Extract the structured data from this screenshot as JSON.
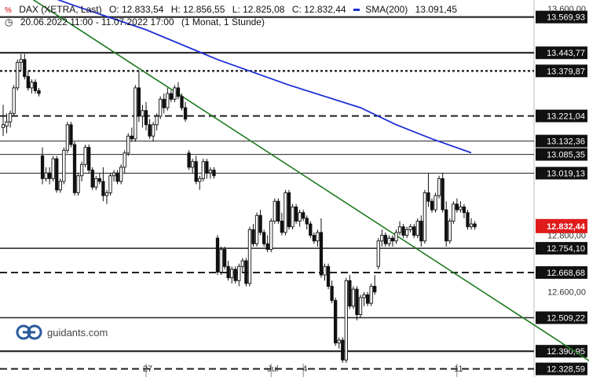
{
  "header": {
    "instrument": "DAX (XETRA, Last)",
    "open": "O: 12.833,54",
    "high": "H: 12.856,55",
    "low": "L: 12.825,08",
    "close": "C: 12.832,44",
    "sma_label": "SMA(200)",
    "sma_value": "13.091,45",
    "range": "20.06.2022 11:00 - 11.07.2022 17:00",
    "interval": "(1 Monat, 1 Stunde)"
  },
  "logo": {
    "text": "guidants.com"
  },
  "colors": {
    "candle_fill": "#111111",
    "candle_hollow": "#ffffff",
    "sma": "#1e2fd6",
    "trendline": "#1f7a1f",
    "current_price_bg": "#e01b1b",
    "grid_line": "#dddddd"
  },
  "chart_data": {
    "type": "candlestick",
    "title": "DAX (XETRA, Last)",
    "ylim": [
      12300,
      13630
    ],
    "y_axis_ticks": [
      "13.600,00",
      "12.800,00",
      "12.600,00"
    ],
    "x_ticks": [
      "27",
      "Jul",
      "4",
      "11"
    ],
    "current_price": "12.832,44",
    "levels": [
      {
        "label": "13.569,93",
        "style": "solid-thick"
      },
      {
        "label": "13.443,77",
        "style": "solid-thick"
      },
      {
        "label": "13.379,87",
        "style": "dotted"
      },
      {
        "label": "13.221,04",
        "style": "dashed"
      },
      {
        "label": "13.132,36",
        "style": "solid-thin"
      },
      {
        "label": "13.085,35",
        "style": "solid-thin"
      },
      {
        "label": "13.019,13",
        "style": "solid-thin"
      },
      {
        "label": "12.754,10",
        "style": "solid"
      },
      {
        "label": "12.668,68",
        "style": "dashed"
      },
      {
        "label": "12.509,22",
        "style": "solid"
      },
      {
        "label": "12.390,95",
        "style": "solid-thick"
      },
      {
        "label": "12.328,59",
        "style": "dashed"
      }
    ],
    "sma_series": {
      "name": "SMA(200)",
      "points": [
        [
          0,
          13700
        ],
        [
          20,
          13610
        ],
        [
          40,
          13525
        ],
        [
          60,
          13420
        ],
        [
          80,
          13330
        ],
        [
          100,
          13250
        ],
        [
          110,
          13190
        ],
        [
          120,
          13140
        ],
        [
          131,
          13091
        ]
      ]
    },
    "trendline": {
      "from": [
        0,
        13700
      ],
      "to": [
        171,
        12300
      ]
    },
    "candles": [
      {
        "o": 13180,
        "h": 13260,
        "l": 13150,
        "c": 13190
      },
      {
        "o": 13185,
        "h": 13230,
        "l": 13160,
        "c": 13200
      },
      {
        "o": 13200,
        "h": 13240,
        "l": 13180,
        "c": 13230
      },
      {
        "o": 13230,
        "h": 13330,
        "l": 13220,
        "c": 13320
      },
      {
        "o": 13320,
        "h": 13420,
        "l": 13310,
        "c": 13410
      },
      {
        "o": 13410,
        "h": 13440,
        "l": 13380,
        "c": 13420
      },
      {
        "o": 13420,
        "h": 13440,
        "l": 13350,
        "c": 13360
      },
      {
        "o": 13360,
        "h": 13380,
        "l": 13310,
        "c": 13320
      },
      {
        "o": 13320,
        "h": 13350,
        "l": 13300,
        "c": 13340
      },
      {
        "o": 13340,
        "h": 13350,
        "l": 13300,
        "c": 13310
      },
      {
        "o": 13310,
        "h": 13320,
        "l": 13290,
        "c": 13300
      },
      {
        "o": 13080,
        "h": 13110,
        "l": 12980,
        "c": 13000
      },
      {
        "o": 13000,
        "h": 13040,
        "l": 12990,
        "c": 13020
      },
      {
        "o": 13020,
        "h": 13040,
        "l": 12980,
        "c": 13000
      },
      {
        "o": 13000,
        "h": 13080,
        "l": 12990,
        "c": 13070
      },
      {
        "o": 13070,
        "h": 13080,
        "l": 12950,
        "c": 12960
      },
      {
        "o": 12960,
        "h": 13000,
        "l": 12950,
        "c": 12990
      },
      {
        "o": 12990,
        "h": 13110,
        "l": 12980,
        "c": 13100
      },
      {
        "o": 13100,
        "h": 13200,
        "l": 13090,
        "c": 13190
      },
      {
        "o": 13190,
        "h": 13200,
        "l": 13110,
        "c": 13120
      },
      {
        "o": 13120,
        "h": 13130,
        "l": 12940,
        "c": 12950
      },
      {
        "o": 12950,
        "h": 13020,
        "l": 12940,
        "c": 13010
      },
      {
        "o": 13010,
        "h": 13060,
        "l": 12990,
        "c": 13050
      },
      {
        "o": 13050,
        "h": 13120,
        "l": 13040,
        "c": 13110
      },
      {
        "o": 13110,
        "h": 13120,
        "l": 13020,
        "c": 13030
      },
      {
        "o": 13030,
        "h": 13040,
        "l": 12960,
        "c": 12970
      },
      {
        "o": 12970,
        "h": 13010,
        "l": 12960,
        "c": 13000
      },
      {
        "o": 13000,
        "h": 13020,
        "l": 12980,
        "c": 12990
      },
      {
        "o": 12990,
        "h": 13040,
        "l": 12920,
        "c": 12940
      },
      {
        "o": 12940,
        "h": 12960,
        "l": 12910,
        "c": 12950
      },
      {
        "o": 12950,
        "h": 13020,
        "l": 12940,
        "c": 13010
      },
      {
        "o": 13010,
        "h": 13030,
        "l": 12990,
        "c": 13020
      },
      {
        "o": 13020,
        "h": 13030,
        "l": 12980,
        "c": 12990
      },
      {
        "o": 12990,
        "h": 13050,
        "l": 12980,
        "c": 13040
      },
      {
        "o": 13040,
        "h": 13100,
        "l": 13020,
        "c": 13090
      },
      {
        "o": 13090,
        "h": 13160,
        "l": 13080,
        "c": 13150
      },
      {
        "o": 13150,
        "h": 13180,
        "l": 13130,
        "c": 13140
      },
      {
        "o": 13140,
        "h": 13330,
        "l": 13130,
        "c": 13320
      },
      {
        "o": 13320,
        "h": 13380,
        "l": 13200,
        "c": 13220
      },
      {
        "o": 13220,
        "h": 13260,
        "l": 13180,
        "c": 13240
      },
      {
        "o": 13240,
        "h": 13270,
        "l": 13170,
        "c": 13190
      },
      {
        "o": 13190,
        "h": 13210,
        "l": 13140,
        "c": 13150
      },
      {
        "o": 13150,
        "h": 13200,
        "l": 13130,
        "c": 13190
      },
      {
        "o": 13190,
        "h": 13230,
        "l": 13170,
        "c": 13220
      },
      {
        "o": 13220,
        "h": 13290,
        "l": 13210,
        "c": 13280
      },
      {
        "o": 13280,
        "h": 13300,
        "l": 13230,
        "c": 13250
      },
      {
        "o": 13250,
        "h": 13320,
        "l": 13240,
        "c": 13300
      },
      {
        "o": 13300,
        "h": 13310,
        "l": 13270,
        "c": 13280
      },
      {
        "o": 13280,
        "h": 13330,
        "l": 13270,
        "c": 13320
      },
      {
        "o": 13320,
        "h": 13340,
        "l": 13280,
        "c": 13290
      },
      {
        "o": 13290,
        "h": 13300,
        "l": 13240,
        "c": 13250
      },
      {
        "o": 13250,
        "h": 13270,
        "l": 13200,
        "c": 13210
      },
      {
        "o": 13090,
        "h": 13100,
        "l": 13030,
        "c": 13040
      },
      {
        "o": 13040,
        "h": 13070,
        "l": 13020,
        "c": 13060
      },
      {
        "o": 13060,
        "h": 13080,
        "l": 12980,
        "c": 12990
      },
      {
        "o": 12990,
        "h": 13010,
        "l": 12960,
        "c": 13000
      },
      {
        "o": 13000,
        "h": 13070,
        "l": 12990,
        "c": 13060
      },
      {
        "o": 13060,
        "h": 13070,
        "l": 13000,
        "c": 13020
      },
      {
        "o": 13020,
        "h": 13040,
        "l": 13000,
        "c": 13030
      },
      {
        "o": 13030,
        "h": 13040,
        "l": 13000,
        "c": 13010
      },
      {
        "o": 12790,
        "h": 12800,
        "l": 12660,
        "c": 12670
      },
      {
        "o": 12670,
        "h": 12760,
        "l": 12660,
        "c": 12750
      },
      {
        "o": 12750,
        "h": 12760,
        "l": 12680,
        "c": 12690
      },
      {
        "o": 12690,
        "h": 12710,
        "l": 12640,
        "c": 12650
      },
      {
        "o": 12650,
        "h": 12690,
        "l": 12630,
        "c": 12680
      },
      {
        "o": 12680,
        "h": 12690,
        "l": 12630,
        "c": 12640
      },
      {
        "o": 12640,
        "h": 12700,
        "l": 12620,
        "c": 12690
      },
      {
        "o": 12690,
        "h": 12720,
        "l": 12670,
        "c": 12710
      },
      {
        "o": 12710,
        "h": 12720,
        "l": 12620,
        "c": 12630
      },
      {
        "o": 12630,
        "h": 12830,
        "l": 12620,
        "c": 12820
      },
      {
        "o": 12820,
        "h": 12840,
        "l": 12760,
        "c": 12770
      },
      {
        "o": 12770,
        "h": 12880,
        "l": 12760,
        "c": 12870
      },
      {
        "o": 12870,
        "h": 12890,
        "l": 12800,
        "c": 12810
      },
      {
        "o": 12810,
        "h": 12820,
        "l": 12760,
        "c": 12770
      },
      {
        "o": 12770,
        "h": 12800,
        "l": 12740,
        "c": 12750
      },
      {
        "o": 12750,
        "h": 12860,
        "l": 12740,
        "c": 12850
      },
      {
        "o": 12850,
        "h": 12930,
        "l": 12840,
        "c": 12920
      },
      {
        "o": 12920,
        "h": 12930,
        "l": 12840,
        "c": 12850
      },
      {
        "o": 12850,
        "h": 12880,
        "l": 12800,
        "c": 12810
      },
      {
        "o": 12810,
        "h": 12960,
        "l": 12800,
        "c": 12950
      },
      {
        "o": 12950,
        "h": 12960,
        "l": 12820,
        "c": 12830
      },
      {
        "o": 12830,
        "h": 12910,
        "l": 12820,
        "c": 12900
      },
      {
        "o": 12900,
        "h": 12910,
        "l": 12840,
        "c": 12850
      },
      {
        "o": 12850,
        "h": 12890,
        "l": 12830,
        "c": 12880
      },
      {
        "o": 12880,
        "h": 12890,
        "l": 12850,
        "c": 12860
      },
      {
        "o": 12860,
        "h": 12870,
        "l": 12820,
        "c": 12840
      },
      {
        "o": 12840,
        "h": 12850,
        "l": 12790,
        "c": 12800
      },
      {
        "o": 12800,
        "h": 12810,
        "l": 12770,
        "c": 12780
      },
      {
        "o": 12780,
        "h": 12820,
        "l": 12760,
        "c": 12810
      },
      {
        "o": 12810,
        "h": 12860,
        "l": 12650,
        "c": 12660
      },
      {
        "o": 12660,
        "h": 12700,
        "l": 12640,
        "c": 12690
      },
      {
        "o": 12690,
        "h": 12700,
        "l": 12610,
        "c": 12620
      },
      {
        "o": 12620,
        "h": 12640,
        "l": 12560,
        "c": 12570
      },
      {
        "o": 12570,
        "h": 12580,
        "l": 12410,
        "c": 12420
      },
      {
        "o": 12420,
        "h": 12440,
        "l": 12400,
        "c": 12430
      },
      {
        "o": 12430,
        "h": 12440,
        "l": 12350,
        "c": 12360
      },
      {
        "o": 12360,
        "h": 12650,
        "l": 12350,
        "c": 12640
      },
      {
        "o": 12640,
        "h": 12660,
        "l": 12540,
        "c": 12550
      },
      {
        "o": 12550,
        "h": 12620,
        "l": 12540,
        "c": 12610
      },
      {
        "o": 12610,
        "h": 12620,
        "l": 12500,
        "c": 12520
      },
      {
        "o": 12520,
        "h": 12590,
        "l": 12510,
        "c": 12580
      },
      {
        "o": 12580,
        "h": 12600,
        "l": 12550,
        "c": 12590
      },
      {
        "o": 12590,
        "h": 12600,
        "l": 12550,
        "c": 12560
      },
      {
        "o": 12560,
        "h": 12630,
        "l": 12550,
        "c": 12620
      },
      {
        "o": 12620,
        "h": 12660,
        "l": 12590,
        "c": 12600
      },
      {
        "o": 12690,
        "h": 12790,
        "l": 12680,
        "c": 12780
      },
      {
        "o": 12780,
        "h": 12820,
        "l": 12760,
        "c": 12800
      },
      {
        "o": 12800,
        "h": 12810,
        "l": 12760,
        "c": 12770
      },
      {
        "o": 12770,
        "h": 12800,
        "l": 12760,
        "c": 12790
      },
      {
        "o": 12790,
        "h": 12800,
        "l": 12760,
        "c": 12780
      },
      {
        "o": 12780,
        "h": 12820,
        "l": 12770,
        "c": 12810
      },
      {
        "o": 12810,
        "h": 12850,
        "l": 12800,
        "c": 12830
      },
      {
        "o": 12830,
        "h": 12840,
        "l": 12790,
        "c": 12800
      },
      {
        "o": 12800,
        "h": 12830,
        "l": 12790,
        "c": 12820
      },
      {
        "o": 12820,
        "h": 12840,
        "l": 12810,
        "c": 12830
      },
      {
        "o": 12830,
        "h": 12840,
        "l": 12790,
        "c": 12800
      },
      {
        "o": 12800,
        "h": 12860,
        "l": 12790,
        "c": 12850
      },
      {
        "o": 12850,
        "h": 12870,
        "l": 12760,
        "c": 12780
      },
      {
        "o": 12780,
        "h": 12960,
        "l": 12770,
        "c": 12950
      },
      {
        "o": 12950,
        "h": 13020,
        "l": 12900,
        "c": 12920
      },
      {
        "o": 12920,
        "h": 12930,
        "l": 12880,
        "c": 12890
      },
      {
        "o": 12890,
        "h": 12950,
        "l": 12880,
        "c": 12940
      },
      {
        "o": 12940,
        "h": 13010,
        "l": 12930,
        "c": 13000
      },
      {
        "o": 13000,
        "h": 13020,
        "l": 12880,
        "c": 12890
      },
      {
        "o": 12890,
        "h": 12920,
        "l": 12760,
        "c": 12780
      },
      {
        "o": 12780,
        "h": 12860,
        "l": 12770,
        "c": 12850
      },
      {
        "o": 12850,
        "h": 12920,
        "l": 12840,
        "c": 12910
      },
      {
        "o": 12910,
        "h": 12930,
        "l": 12880,
        "c": 12890
      },
      {
        "o": 12890,
        "h": 12920,
        "l": 12880,
        "c": 12900
      },
      {
        "o": 12900,
        "h": 12910,
        "l": 12860,
        "c": 12880
      },
      {
        "o": 12880,
        "h": 12890,
        "l": 12820,
        "c": 12830
      },
      {
        "o": 12830,
        "h": 12860,
        "l": 12820,
        "c": 12840
      },
      {
        "o": 12840,
        "h": 12850,
        "l": 12820,
        "c": 12830
      }
    ]
  }
}
